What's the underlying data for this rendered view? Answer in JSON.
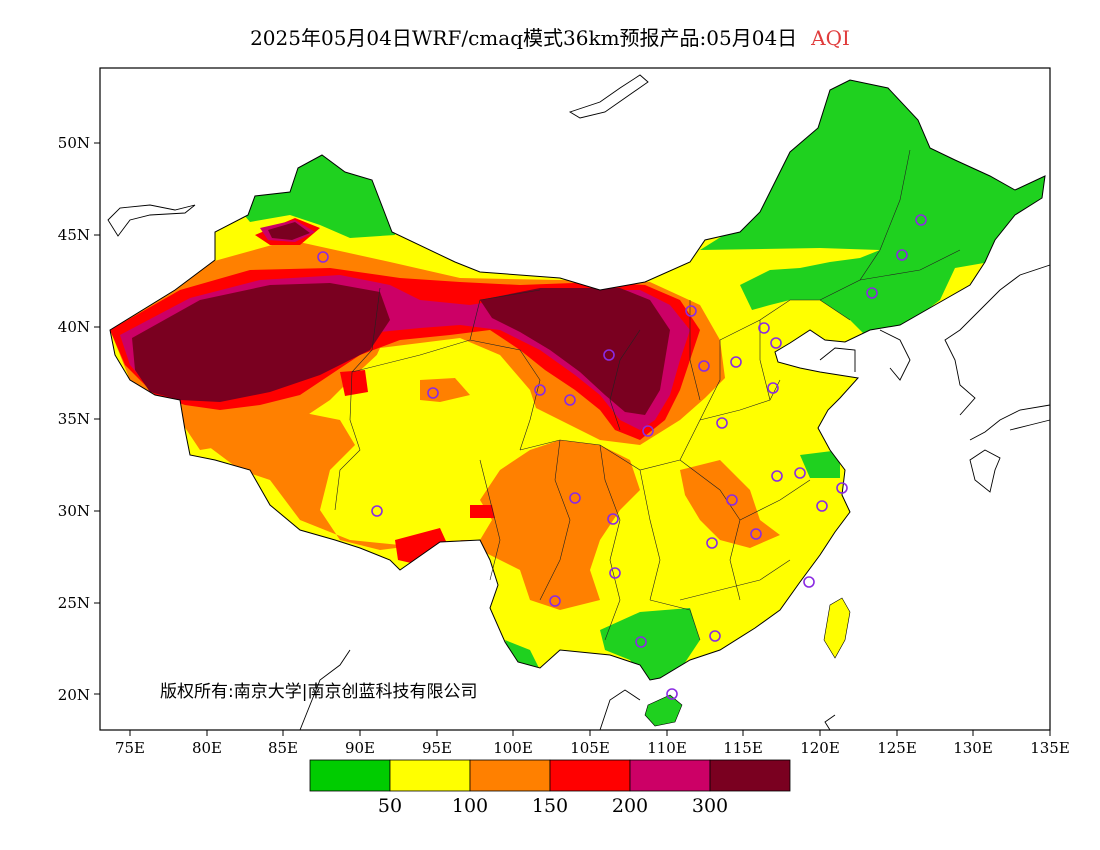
{
  "title": {
    "main": "2025年05月04日WRF/cmaq模式36km预报产品:05月04日",
    "variable": "AQI"
  },
  "axes": {
    "lat_ticks": [
      "20N",
      "25N",
      "30N",
      "35N",
      "40N",
      "45N",
      "50N"
    ],
    "lon_ticks": [
      "75E",
      "80E",
      "85E",
      "90E",
      "95E",
      "100E",
      "105E",
      "110E",
      "115E",
      "120E",
      "125E",
      "130E",
      "135E"
    ]
  },
  "copyright": "版权所有:南京大学|南京创蓝科技有限公司",
  "legend": {
    "colors": [
      "#00cc00",
      "#ffff00",
      "#ff8000",
      "#ff0000",
      "#cc0066",
      "#7a0020"
    ],
    "labels": [
      "50",
      "100",
      "150",
      "200",
      "300"
    ]
  },
  "colors": {
    "green": "#1fd11f",
    "yellow": "#ffff00",
    "orange": "#ff8000",
    "red": "#ff0000",
    "magenta": "#cc0066",
    "maroon": "#7a0020",
    "station": "#8a2be2"
  }
}
